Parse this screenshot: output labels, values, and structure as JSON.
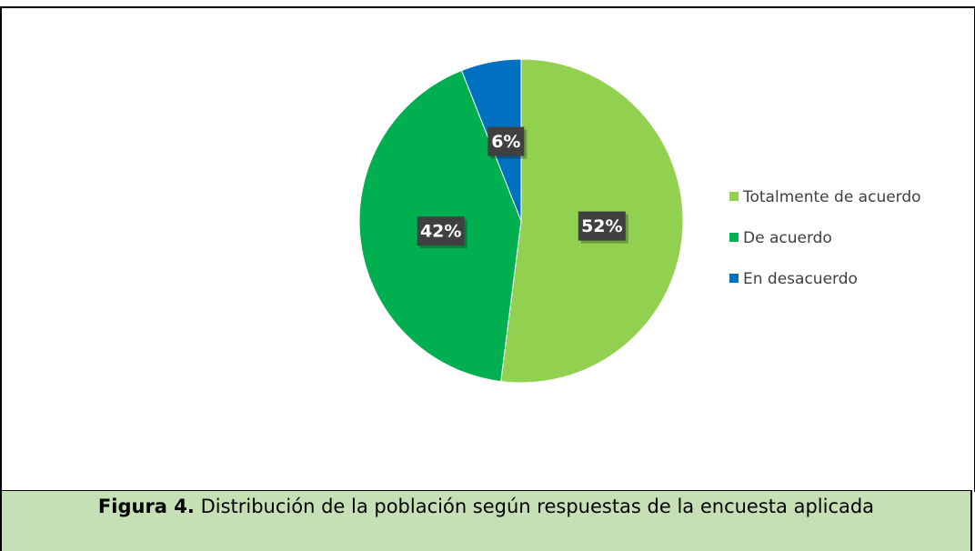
{
  "chart_data": {
    "type": "pie",
    "categories": [
      "Totalmente de acuerdo",
      "De acuerdo",
      "En desacuerdo"
    ],
    "values": [
      52,
      42,
      6
    ],
    "value_labels": [
      "52%",
      "42%",
      "6%"
    ],
    "colors": [
      "#92d050",
      "#00b050",
      "#0070c0"
    ],
    "legend": "right"
  },
  "caption": {
    "label": "Figura 4.",
    "text": "Distribución de la población según respuestas de la encuesta aplicada"
  }
}
